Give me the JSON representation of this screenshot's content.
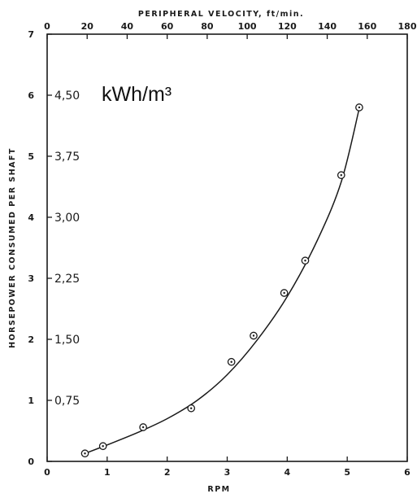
{
  "chart_data": {
    "type": "scatter",
    "title": "",
    "xlabel": "RPM",
    "ylabel": "HORSEPOWER CONSUMED PER SHAFT",
    "x_top_label": "PERIPHERAL VELOCITY, ft/min.",
    "xlim": [
      0,
      6
    ],
    "ylim": [
      0,
      7
    ],
    "x_top_lim": [
      0,
      180
    ],
    "x_ticks": [
      "0",
      "1",
      "2",
      "3",
      "4",
      "5",
      "6"
    ],
    "y_ticks": [
      "0",
      "1",
      "2",
      "3",
      "4",
      "5",
      "6",
      "7"
    ],
    "x_top_ticks": [
      "0",
      "20",
      "40",
      "60",
      "80",
      "100",
      "120",
      "140",
      "160",
      "180"
    ],
    "secondary_y": {
      "unit_label": "kWh/m³",
      "ticks": [
        {
          "label": "0,75",
          "value": 1
        },
        {
          "label": "1,50",
          "value": 2
        },
        {
          "label": "2,25",
          "value": 3
        },
        {
          "label": "3,00",
          "value": 4
        },
        {
          "label": "3,75",
          "value": 5
        },
        {
          "label": "4,50",
          "value": 6
        }
      ]
    },
    "points": [
      {
        "x": 0.63,
        "y": 0.13
      },
      {
        "x": 0.93,
        "y": 0.25
      },
      {
        "x": 1.6,
        "y": 0.56
      },
      {
        "x": 2.4,
        "y": 0.87
      },
      {
        "x": 3.07,
        "y": 1.63
      },
      {
        "x": 3.44,
        "y": 2.06
      },
      {
        "x": 3.95,
        "y": 2.76
      },
      {
        "x": 4.3,
        "y": 3.29
      },
      {
        "x": 4.9,
        "y": 4.69
      },
      {
        "x": 5.2,
        "y": 5.8
      }
    ],
    "fit_curve": [
      {
        "x": 0.63,
        "y": 0.13
      },
      {
        "x": 1.0,
        "y": 0.27
      },
      {
        "x": 1.5,
        "y": 0.47
      },
      {
        "x": 2.0,
        "y": 0.7
      },
      {
        "x": 2.5,
        "y": 1.0
      },
      {
        "x": 3.0,
        "y": 1.42
      },
      {
        "x": 3.5,
        "y": 1.99
      },
      {
        "x": 4.0,
        "y": 2.7
      },
      {
        "x": 4.5,
        "y": 3.62
      },
      {
        "x": 4.9,
        "y": 4.58
      },
      {
        "x": 5.2,
        "y": 5.78
      }
    ],
    "grid": false,
    "legend": "none"
  }
}
